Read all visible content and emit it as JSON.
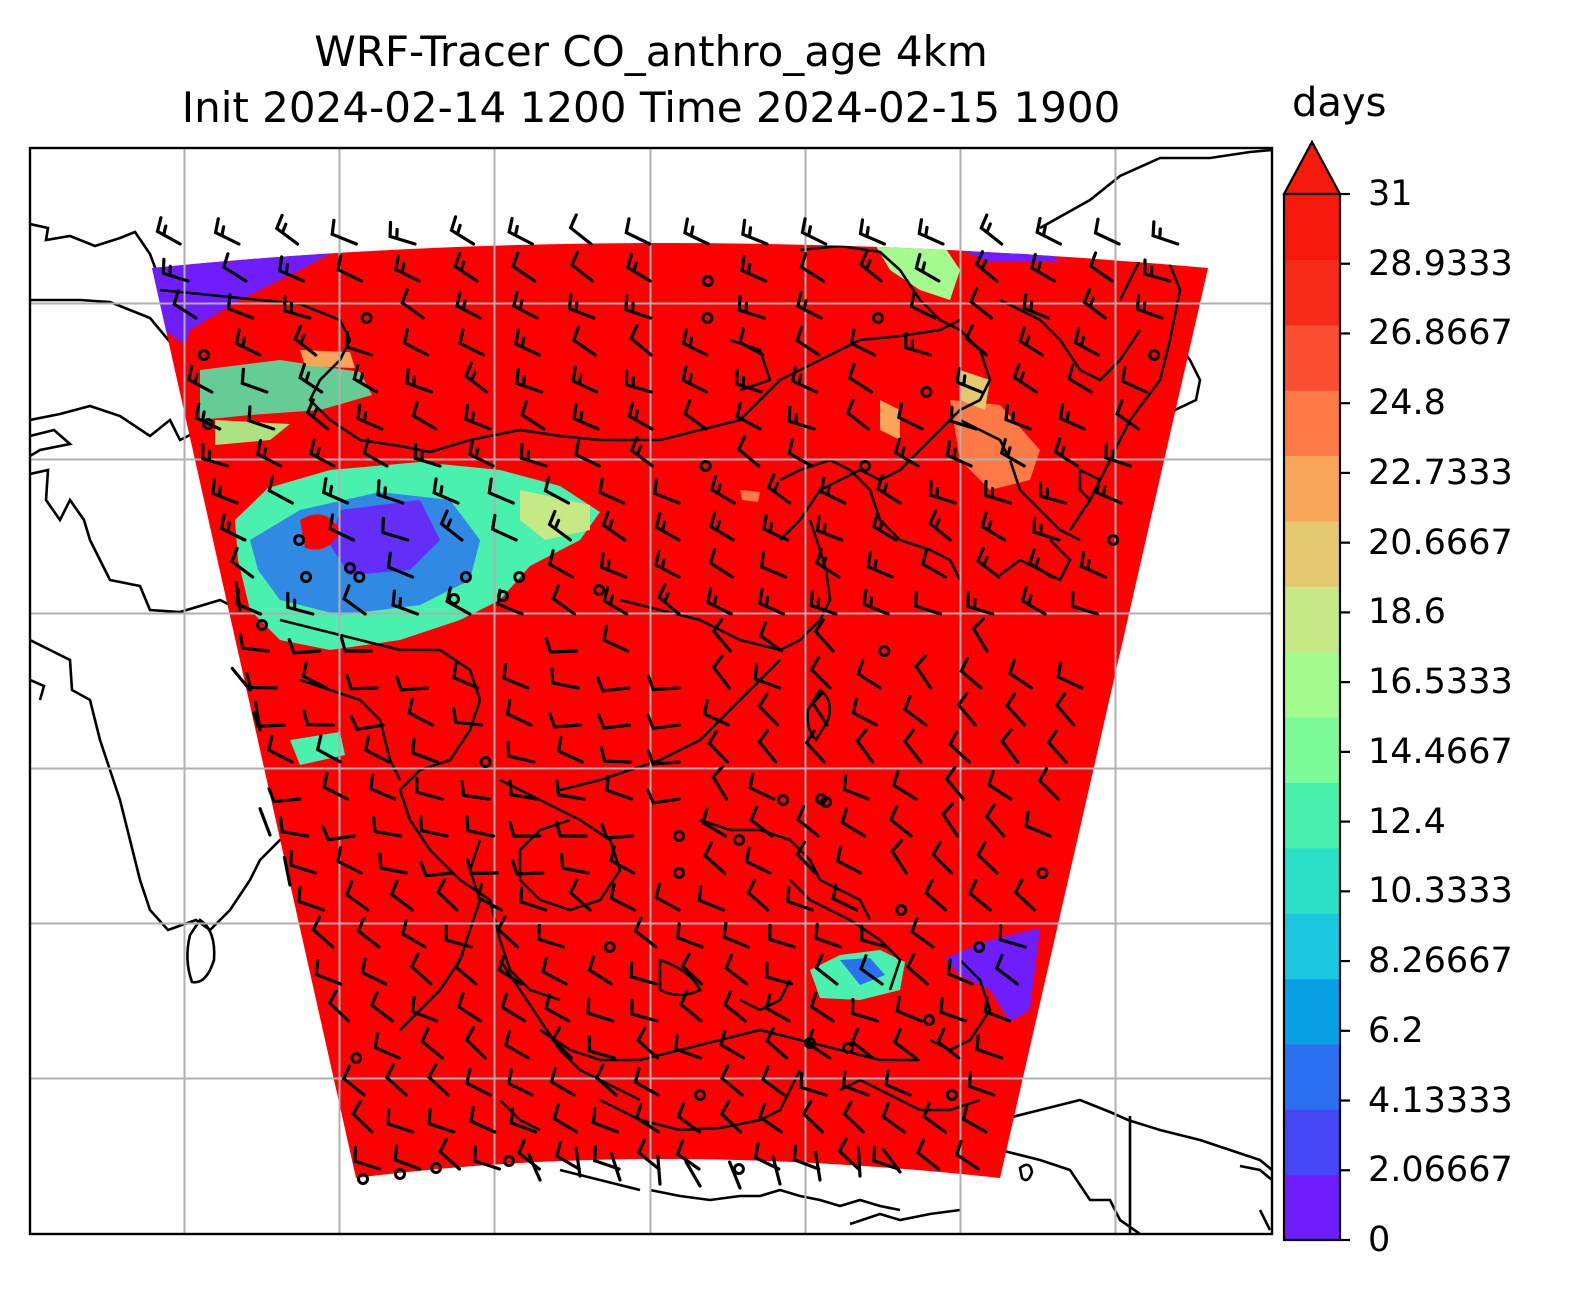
{
  "figure": {
    "title_line1": "WRF-Tracer CO_anthro_age 4km",
    "title_line2": "Init 2024-02-14 1200 Time 2024-02-15 1900"
  },
  "colorbar": {
    "unit_label": "days",
    "min": 0,
    "max": 31,
    "extend": "max",
    "tick_labels": [
      "0",
      "2.06667",
      "4.13333",
      "6.2",
      "8.26667",
      "10.3333",
      "12.4",
      "14.4667",
      "16.5333",
      "18.6",
      "20.6667",
      "22.7333",
      "24.8",
      "26.8667",
      "28.9333",
      "31"
    ],
    "colors": [
      "#6f1dfc",
      "#4547f5",
      "#2b70f0",
      "#0aa0e6",
      "#1cc7e0",
      "#2ae0c7",
      "#49f0ae",
      "#7dfb99",
      "#a4fb8e",
      "#c7e985",
      "#e5c970",
      "#f8a55a",
      "#fd7a47",
      "#fc4e30",
      "#f62a18",
      "#f51a0c"
    ]
  },
  "map": {
    "field_color_dominant": "#fe0000",
    "gridlines": true,
    "wind_barbs": true,
    "coastlines": true
  }
}
